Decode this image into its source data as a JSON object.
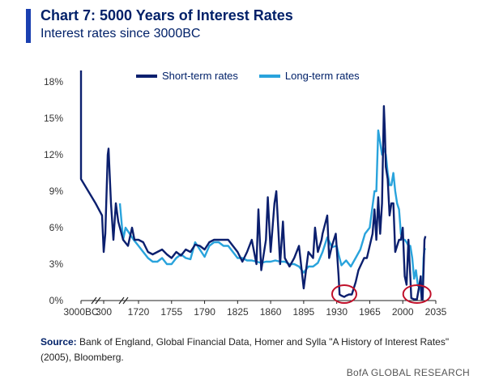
{
  "header": {
    "title": "Chart 7: 5000 Years of Interest Rates",
    "subtitle": "Interest rates since 3000BC"
  },
  "colors": {
    "accent": "#1a3fb0",
    "short_term": "#0b1f6e",
    "long_term": "#29a3dc",
    "highlight": "#c0102a"
  },
  "source": {
    "label": "Source:",
    "text": "Bank of England, Global Financial Data, Homer and Sylla \"A History of Interest Rates\" (2005), Bloomberg."
  },
  "footer": {
    "brand": "BofA GLOBAL RESEARCH"
  },
  "chart_data": {
    "type": "line",
    "title": "Chart 7: 5000 Years of Interest Rates",
    "subtitle": "Interest rates since 3000BC",
    "xlabel": "",
    "ylabel": "",
    "x_ticks": [
      "3000BC",
      "300",
      "1720",
      "1755",
      "1790",
      "1825",
      "1860",
      "1895",
      "1930",
      "1965",
      "2000",
      "2035"
    ],
    "y_ticks": [
      "0%",
      "3%",
      "6%",
      "9%",
      "12%",
      "15%",
      "18%"
    ],
    "ylim": [
      0,
      18
    ],
    "axis_breaks": "two breaks on x-axis between 3000BC and 300 and between 300 and 1720",
    "legend_position": "top-center",
    "grid": false,
    "annotations": [
      "red circle around ~1935-1945 near-zero short-term rates",
      "red circle around ~2010-2020 near-zero short-term rates"
    ],
    "series": [
      {
        "name": "Short-term rates",
        "points": [
          [
            "3000BC",
            20
          ],
          [
            "3000BC",
            10
          ],
          [
            "100",
            10
          ],
          [
            "200",
            8
          ],
          [
            "260",
            7
          ],
          [
            "300",
            4.0
          ],
          [
            "350",
            5.5
          ],
          [
            "400",
            12.0
          ],
          [
            "420",
            12.5
          ],
          [
            "450",
            8.0
          ],
          [
            "500",
            5.0
          ],
          [
            "550",
            8.0
          ],
          [
            "600",
            6.5
          ],
          [
            "650",
            5.0
          ],
          [
            "700",
            4.5
          ],
          [
            "750",
            6.0
          ],
          [
            "800",
            5.0
          ],
          [
            1720,
            5.0
          ],
          [
            1725,
            4.8
          ],
          [
            1730,
            4.0
          ],
          [
            1735,
            3.8
          ],
          [
            1740,
            4.0
          ],
          [
            1745,
            4.2
          ],
          [
            1750,
            3.8
          ],
          [
            1755,
            3.5
          ],
          [
            1760,
            4.0
          ],
          [
            1765,
            3.7
          ],
          [
            1770,
            4.2
          ],
          [
            1775,
            4.0
          ],
          [
            1780,
            4.6
          ],
          [
            1785,
            4.5
          ],
          [
            1790,
            4.2
          ],
          [
            1795,
            4.8
          ],
          [
            1800,
            5.0
          ],
          [
            1805,
            5.0
          ],
          [
            1810,
            5.0
          ],
          [
            1815,
            5.0
          ],
          [
            1820,
            4.5
          ],
          [
            1825,
            4.0
          ],
          [
            1830,
            3.2
          ],
          [
            1835,
            4.0
          ],
          [
            1840,
            5.0
          ],
          [
            1845,
            3.0
          ],
          [
            1847,
            7.5
          ],
          [
            1850,
            2.5
          ],
          [
            1855,
            5.0
          ],
          [
            1857,
            8.5
          ],
          [
            1860,
            4.0
          ],
          [
            1864,
            8.0
          ],
          [
            1866,
            9.0
          ],
          [
            1870,
            3.0
          ],
          [
            1873,
            6.5
          ],
          [
            1875,
            3.5
          ],
          [
            1880,
            2.8
          ],
          [
            1885,
            3.5
          ],
          [
            1890,
            4.5
          ],
          [
            1895,
            1.0
          ],
          [
            1900,
            4.0
          ],
          [
            1905,
            3.5
          ],
          [
            1907,
            6.0
          ],
          [
            1910,
            4.0
          ],
          [
            1914,
            5.0
          ],
          [
            1915,
            5.5
          ],
          [
            1920,
            7.0
          ],
          [
            1922,
            3.5
          ],
          [
            1925,
            4.5
          ],
          [
            1929,
            5.5
          ],
          [
            1932,
            2.0
          ],
          [
            1933,
            0.5
          ],
          [
            1935,
            0.4
          ],
          [
            1938,
            0.3
          ],
          [
            1940,
            0.4
          ],
          [
            1943,
            0.5
          ],
          [
            1946,
            0.5
          ],
          [
            1950,
            1.5
          ],
          [
            1953,
            2.5
          ],
          [
            1956,
            3.0
          ],
          [
            1959,
            3.5
          ],
          [
            1962,
            3.5
          ],
          [
            1965,
            4.5
          ],
          [
            1968,
            5.5
          ],
          [
            1970,
            7.5
          ],
          [
            1972,
            5.0
          ],
          [
            1974,
            8.5
          ],
          [
            1976,
            5.5
          ],
          [
            1978,
            8.0
          ],
          [
            1980,
            16.0
          ],
          [
            1981,
            14.0
          ],
          [
            1982,
            11.0
          ],
          [
            1984,
            10.0
          ],
          [
            1986,
            7.0
          ],
          [
            1988,
            8.0
          ],
          [
            1990,
            8.0
          ],
          [
            1992,
            4.0
          ],
          [
            1994,
            4.5
          ],
          [
            1996,
            5.0
          ],
          [
            1998,
            5.0
          ],
          [
            2000,
            6.0
          ],
          [
            2002,
            2.0
          ],
          [
            2004,
            1.3
          ],
          [
            2006,
            5.0
          ],
          [
            2008,
            2.0
          ],
          [
            2009,
            0.2
          ],
          [
            2012,
            0.1
          ],
          [
            2015,
            0.1
          ],
          [
            2017,
            1.0
          ],
          [
            2019,
            2.0
          ],
          [
            2020,
            0.1
          ],
          [
            2021,
            0.1
          ],
          [
            2022,
            2.5
          ],
          [
            2023,
            5.0
          ],
          [
            2024,
            5.3
          ]
        ]
      },
      {
        "name": "Long-term rates",
        "points": [
          [
            "1500",
            8.0
          ],
          [
            "1550",
            5.0
          ],
          [
            "1600",
            6.0
          ],
          [
            "1650",
            5.5
          ],
          [
            "1700",
            5.0
          ],
          [
            1720,
            4.5
          ],
          [
            1725,
            4.0
          ],
          [
            1730,
            3.5
          ],
          [
            1735,
            3.2
          ],
          [
            1740,
            3.2
          ],
          [
            1745,
            3.5
          ],
          [
            1750,
            3.0
          ],
          [
            1755,
            3.0
          ],
          [
            1760,
            3.5
          ],
          [
            1765,
            3.8
          ],
          [
            1770,
            3.5
          ],
          [
            1775,
            3.4
          ],
          [
            1780,
            4.8
          ],
          [
            1785,
            4.2
          ],
          [
            1790,
            3.6
          ],
          [
            1795,
            4.5
          ],
          [
            1800,
            4.8
          ],
          [
            1805,
            4.8
          ],
          [
            1810,
            4.5
          ],
          [
            1815,
            4.5
          ],
          [
            1820,
            4.0
          ],
          [
            1825,
            3.5
          ],
          [
            1830,
            3.5
          ],
          [
            1835,
            3.3
          ],
          [
            1840,
            3.3
          ],
          [
            1845,
            3.2
          ],
          [
            1850,
            3.1
          ],
          [
            1855,
            3.2
          ],
          [
            1860,
            3.2
          ],
          [
            1865,
            3.3
          ],
          [
            1870,
            3.2
          ],
          [
            1875,
            3.2
          ],
          [
            1880,
            3.0
          ],
          [
            1885,
            3.0
          ],
          [
            1890,
            2.8
          ],
          [
            1895,
            2.3
          ],
          [
            1900,
            2.8
          ],
          [
            1905,
            2.8
          ],
          [
            1910,
            3.1
          ],
          [
            1915,
            4.0
          ],
          [
            1920,
            5.2
          ],
          [
            1925,
            4.4
          ],
          [
            1930,
            4.5
          ],
          [
            1932,
            3.8
          ],
          [
            1935,
            2.9
          ],
          [
            1940,
            3.3
          ],
          [
            1945,
            2.8
          ],
          [
            1950,
            3.5
          ],
          [
            1955,
            4.2
          ],
          [
            1960,
            5.5
          ],
          [
            1965,
            6.0
          ],
          [
            1970,
            9.0
          ],
          [
            1972,
            9.0
          ],
          [
            1974,
            14.0
          ],
          [
            1976,
            13.0
          ],
          [
            1978,
            12.0
          ],
          [
            1980,
            12.5
          ],
          [
            1982,
            12.0
          ],
          [
            1984,
            10.5
          ],
          [
            1986,
            9.5
          ],
          [
            1988,
            9.5
          ],
          [
            1990,
            10.5
          ],
          [
            1992,
            9.0
          ],
          [
            1994,
            8.0
          ],
          [
            1996,
            7.5
          ],
          [
            1998,
            5.5
          ],
          [
            2000,
            5.0
          ],
          [
            2002,
            5.0
          ],
          [
            2004,
            4.8
          ],
          [
            2006,
            4.5
          ],
          [
            2008,
            4.5
          ],
          [
            2010,
            3.5
          ],
          [
            2012,
            1.8
          ],
          [
            2014,
            2.5
          ],
          [
            2016,
            1.2
          ],
          [
            2018,
            1.4
          ],
          [
            2020,
            0.3
          ],
          [
            2021,
            0.8
          ],
          [
            2022,
            3.5
          ],
          [
            2023,
            4.2
          ],
          [
            2024,
            4.3
          ]
        ]
      }
    ]
  }
}
